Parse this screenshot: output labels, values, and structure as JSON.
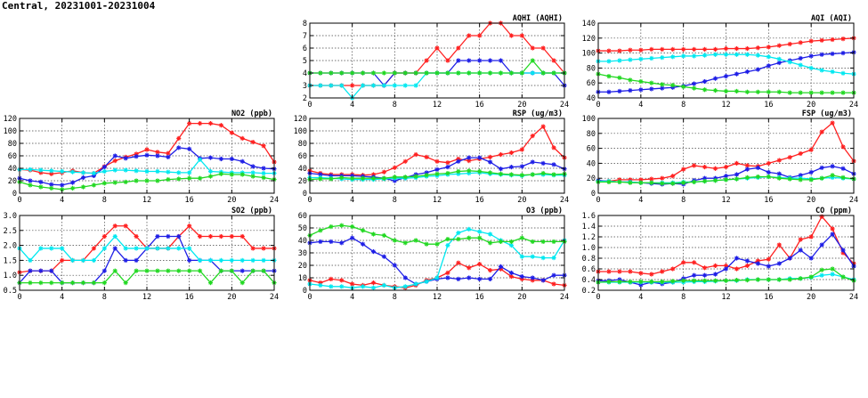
{
  "title": "Central, 20231001-20231004",
  "colors": {
    "red": "#ff2020",
    "blue": "#1e1ee6",
    "cyan": "#00e8f0",
    "green": "#22d822"
  },
  "chart_data": [
    {
      "type": "line",
      "title": "AQHI (AQHI)",
      "xlim": [
        0,
        24
      ],
      "ylim": [
        2,
        8
      ],
      "xticks": [
        0,
        4,
        8,
        12,
        16,
        20,
        24
      ],
      "yticks": [
        2,
        3,
        4,
        5,
        6,
        7,
        8
      ],
      "grid": true,
      "series": [
        {
          "color": "red",
          "values": [
            3,
            3,
            3,
            3,
            3,
            3,
            3,
            3,
            4,
            4,
            4,
            5,
            6,
            5,
            6,
            7,
            7,
            8,
            8,
            7,
            7,
            6,
            6,
            5,
            4
          ]
        },
        {
          "color": "blue",
          "values": [
            4,
            4,
            4,
            4,
            4,
            4,
            4,
            3,
            4,
            4,
            4,
            4,
            4,
            4,
            5,
            5,
            5,
            5,
            5,
            4,
            4,
            4,
            4,
            4,
            3
          ]
        },
        {
          "color": "cyan",
          "values": [
            3,
            3,
            3,
            3,
            2,
            3,
            3,
            3,
            3,
            3,
            3,
            4,
            4,
            4,
            4,
            4,
            4,
            4,
            4,
            4,
            4,
            4,
            4,
            4,
            4
          ]
        },
        {
          "color": "green",
          "values": [
            4,
            4,
            4,
            4,
            4,
            4,
            4,
            4,
            4,
            4,
            4,
            4,
            4,
            4,
            4,
            4,
            4,
            4,
            4,
            4,
            4,
            5,
            4,
            4,
            4
          ]
        }
      ]
    },
    {
      "type": "line",
      "title": "AQI (AQI)",
      "xlim": [
        0,
        24
      ],
      "ylim": [
        40,
        140
      ],
      "xticks": [
        0,
        4,
        8,
        12,
        16,
        20,
        24
      ],
      "yticks": [
        40,
        60,
        80,
        100,
        120,
        140
      ],
      "grid": true,
      "series": [
        {
          "color": "red",
          "values": [
            103,
            103,
            103,
            104,
            104,
            105,
            105,
            105,
            105,
            105,
            105,
            105,
            106,
            106,
            106,
            107,
            108,
            110,
            112,
            114,
            116,
            117,
            118,
            119,
            120
          ]
        },
        {
          "color": "blue",
          "values": [
            48,
            48,
            49,
            50,
            51,
            52,
            53,
            54,
            56,
            59,
            62,
            66,
            69,
            72,
            75,
            78,
            83,
            87,
            90,
            93,
            96,
            98,
            99,
            100,
            101
          ]
        },
        {
          "color": "cyan",
          "values": [
            89,
            89,
            90,
            91,
            92,
            93,
            94,
            95,
            96,
            96,
            97,
            98,
            98,
            98,
            98,
            97,
            95,
            92,
            88,
            84,
            80,
            77,
            75,
            73,
            72
          ]
        },
        {
          "color": "green",
          "values": [
            72,
            69,
            67,
            64,
            62,
            60,
            58,
            57,
            55,
            53,
            51,
            50,
            49,
            49,
            48,
            48,
            48,
            48,
            47,
            47,
            47,
            47,
            47,
            47,
            47
          ]
        }
      ]
    },
    {
      "type": "line",
      "title": "NO2 (ppb)",
      "xlim": [
        0,
        24
      ],
      "ylim": [
        0,
        120
      ],
      "xticks": [
        0,
        4,
        8,
        12,
        16,
        20,
        24
      ],
      "yticks": [
        0,
        20,
        40,
        60,
        80,
        100,
        120
      ],
      "grid": true,
      "series": [
        {
          "color": "red",
          "values": [
            38,
            37,
            33,
            31,
            33,
            36,
            33,
            32,
            43,
            52,
            58,
            63,
            70,
            66,
            64,
            88,
            112,
            112,
            112,
            109,
            97,
            88,
            82,
            76,
            50
          ]
        },
        {
          "color": "blue",
          "values": [
            24,
            20,
            18,
            14,
            13,
            17,
            25,
            28,
            42,
            60,
            56,
            59,
            61,
            60,
            58,
            73,
            71,
            56,
            57,
            55,
            55,
            51,
            43,
            40,
            39
          ]
        },
        {
          "color": "cyan",
          "values": [
            38,
            38,
            37,
            36,
            35,
            34,
            33,
            32,
            35,
            37,
            37,
            36,
            35,
            35,
            34,
            33,
            33,
            54,
            35,
            34,
            33,
            33,
            33,
            32,
            32
          ]
        },
        {
          "color": "green",
          "values": [
            18,
            13,
            10,
            8,
            6,
            8,
            10,
            13,
            16,
            17,
            18,
            20,
            20,
            20,
            22,
            23,
            24,
            24,
            27,
            31,
            30,
            30,
            27,
            25,
            22
          ]
        }
      ]
    },
    {
      "type": "line",
      "title": "RSP (ug/m3)",
      "xlim": [
        0,
        24
      ],
      "ylim": [
        0,
        120
      ],
      "xticks": [
        0,
        4,
        8,
        12,
        16,
        20,
        24
      ],
      "yticks": [
        0,
        20,
        40,
        60,
        80,
        100,
        120
      ],
      "grid": true,
      "series": [
        {
          "color": "red",
          "values": [
            36,
            32,
            30,
            30,
            30,
            29,
            30,
            34,
            41,
            51,
            62,
            58,
            51,
            49,
            55,
            52,
            55,
            58,
            62,
            65,
            70,
            92,
            107,
            73,
            57
          ]
        },
        {
          "color": "blue",
          "values": [
            32,
            30,
            28,
            28,
            28,
            27,
            26,
            24,
            20,
            25,
            30,
            33,
            38,
            42,
            51,
            57,
            57,
            50,
            39,
            42,
            43,
            50,
            48,
            46,
            39
          ]
        },
        {
          "color": "cyan",
          "values": [
            25,
            25,
            24,
            23,
            22,
            22,
            22,
            23,
            24,
            24,
            25,
            27,
            28,
            30,
            31,
            32,
            33,
            31,
            30,
            29,
            28,
            30,
            30,
            29,
            29
          ]
        },
        {
          "color": "green",
          "values": [
            22,
            23,
            23,
            25,
            24,
            24,
            24,
            24,
            26,
            26,
            27,
            29,
            31,
            32,
            35,
            36,
            35,
            33,
            31,
            30,
            29,
            30,
            32,
            30,
            31
          ]
        }
      ]
    },
    {
      "type": "line",
      "title": "FSP (ug/m3)",
      "xlim": [
        0,
        24
      ],
      "ylim": [
        0,
        100
      ],
      "xticks": [
        0,
        4,
        8,
        12,
        16,
        20,
        24
      ],
      "yticks": [
        0,
        20,
        40,
        60,
        80,
        100
      ],
      "grid": true,
      "series": [
        {
          "color": "red",
          "values": [
            17,
            16,
            18,
            18,
            18,
            19,
            20,
            23,
            32,
            37,
            35,
            33,
            35,
            40,
            37,
            36,
            40,
            44,
            48,
            53,
            58,
            82,
            94,
            62,
            43
          ]
        },
        {
          "color": "blue",
          "values": [
            17,
            16,
            15,
            15,
            14,
            13,
            12,
            13,
            12,
            17,
            20,
            20,
            23,
            25,
            32,
            34,
            28,
            26,
            21,
            24,
            28,
            34,
            36,
            33,
            26
          ]
        },
        {
          "color": "cyan",
          "values": [
            16,
            16,
            15,
            15,
            14,
            14,
            14,
            14,
            15,
            15,
            16,
            17,
            18,
            19,
            20,
            21,
            22,
            21,
            20,
            20,
            19,
            20,
            21,
            20,
            19
          ]
        },
        {
          "color": "green",
          "values": [
            15,
            15,
            15,
            14,
            14,
            14,
            13,
            13,
            14,
            15,
            16,
            17,
            18,
            19,
            21,
            22,
            22,
            20,
            19,
            18,
            18,
            20,
            24,
            21,
            19
          ]
        }
      ]
    },
    {
      "type": "line",
      "title": "SO2 (ppb)",
      "xlim": [
        0,
        24
      ],
      "ylim": [
        0.5,
        3.0
      ],
      "xticks": [
        0,
        4,
        8,
        12,
        16,
        20,
        24
      ],
      "yticks": [
        0.5,
        1.0,
        1.5,
        2.0,
        2.5,
        3.0
      ],
      "grid": true,
      "series": [
        {
          "color": "red",
          "values": [
            1.1,
            1.15,
            1.15,
            1.15,
            1.5,
            1.5,
            1.5,
            1.9,
            2.3,
            2.65,
            2.65,
            2.3,
            1.9,
            1.9,
            1.9,
            2.3,
            2.65,
            2.3,
            2.3,
            2.3,
            2.3,
            2.3,
            1.9,
            1.9,
            1.9
          ]
        },
        {
          "color": "blue",
          "values": [
            0.75,
            1.15,
            1.15,
            1.15,
            0.75,
            0.75,
            0.75,
            0.75,
            1.15,
            1.9,
            1.5,
            1.5,
            1.9,
            2.3,
            2.3,
            2.3,
            1.5,
            1.5,
            1.5,
            1.15,
            1.15,
            1.15,
            1.15,
            1.15,
            1.15
          ]
        },
        {
          "color": "cyan",
          "values": [
            1.9,
            1.5,
            1.9,
            1.9,
            1.9,
            1.5,
            1.5,
            1.5,
            1.9,
            2.3,
            1.9,
            1.9,
            1.9,
            1.9,
            1.9,
            1.9,
            1.9,
            1.5,
            1.5,
            1.5,
            1.5,
            1.5,
            1.5,
            1.5,
            1.5
          ]
        },
        {
          "color": "green",
          "values": [
            0.75,
            0.75,
            0.75,
            0.75,
            0.75,
            0.75,
            0.75,
            0.75,
            0.75,
            1.15,
            0.75,
            1.15,
            1.15,
            1.15,
            1.15,
            1.15,
            1.15,
            1.15,
            0.75,
            1.15,
            1.15,
            0.75,
            1.15,
            1.15,
            0.75
          ]
        }
      ]
    },
    {
      "type": "line",
      "title": "O3 (ppb)",
      "xlim": [
        0,
        24
      ],
      "ylim": [
        0,
        60
      ],
      "xticks": [
        0,
        4,
        8,
        12,
        16,
        20,
        24
      ],
      "yticks": [
        0,
        10,
        20,
        30,
        40,
        50,
        60
      ],
      "grid": true,
      "series": [
        {
          "color": "red",
          "values": [
            8,
            6,
            9,
            8,
            5,
            4,
            6,
            4,
            3,
            2,
            4,
            8,
            10,
            14,
            22,
            18,
            21,
            16,
            17,
            11,
            9,
            8,
            8,
            5,
            4
          ]
        },
        {
          "color": "blue",
          "values": [
            38,
            39,
            39,
            38,
            42,
            37,
            31,
            27,
            20,
            10,
            5,
            7,
            9,
            10,
            9,
            10,
            9,
            9,
            19,
            14,
            11,
            10,
            8,
            12,
            12
          ]
        },
        {
          "color": "cyan",
          "values": [
            5,
            4,
            3,
            3,
            2,
            3,
            2,
            4,
            2,
            3,
            5,
            7,
            10,
            36,
            46,
            49,
            47,
            45,
            40,
            36,
            27,
            27,
            26,
            26,
            40
          ]
        },
        {
          "color": "green",
          "values": [
            44,
            48,
            51,
            52,
            51,
            48,
            45,
            44,
            40,
            38,
            40,
            37,
            37,
            41,
            41,
            42,
            42,
            38,
            39,
            39,
            42,
            39,
            39,
            39,
            39
          ]
        }
      ]
    },
    {
      "type": "line",
      "title": "CO (ppm)",
      "xlim": [
        0,
        24
      ],
      "ylim": [
        0.2,
        1.6
      ],
      "xticks": [
        0,
        4,
        8,
        12,
        16,
        20,
        24
      ],
      "yticks": [
        0.2,
        0.4,
        0.6,
        0.8,
        1.0,
        1.2,
        1.4,
        1.6
      ],
      "grid": true,
      "series": [
        {
          "color": "red",
          "values": [
            0.55,
            0.55,
            0.55,
            0.55,
            0.52,
            0.5,
            0.55,
            0.6,
            0.72,
            0.72,
            0.62,
            0.66,
            0.66,
            0.6,
            0.66,
            0.75,
            0.78,
            1.05,
            0.8,
            1.15,
            1.2,
            1.58,
            1.35,
            0.9,
            0.7
          ]
        },
        {
          "color": "blue",
          "values": [
            0.38,
            0.38,
            0.4,
            0.35,
            0.3,
            0.35,
            0.32,
            0.35,
            0.42,
            0.48,
            0.48,
            0.5,
            0.6,
            0.8,
            0.75,
            0.7,
            0.65,
            0.7,
            0.8,
            0.95,
            0.8,
            1.05,
            1.25,
            0.95,
            0.65
          ]
        },
        {
          "color": "cyan",
          "values": [
            0.35,
            0.35,
            0.35,
            0.35,
            0.35,
            0.35,
            0.35,
            0.35,
            0.35,
            0.36,
            0.36,
            0.37,
            0.38,
            0.38,
            0.4,
            0.4,
            0.4,
            0.4,
            0.42,
            0.42,
            0.44,
            0.48,
            0.5,
            0.45,
            0.4
          ]
        },
        {
          "color": "green",
          "values": [
            0.35,
            0.36,
            0.36,
            0.36,
            0.36,
            0.36,
            0.36,
            0.37,
            0.38,
            0.38,
            0.38,
            0.38,
            0.38,
            0.39,
            0.39,
            0.4,
            0.4,
            0.4,
            0.4,
            0.42,
            0.45,
            0.58,
            0.6,
            0.45,
            0.38
          ]
        }
      ]
    }
  ]
}
